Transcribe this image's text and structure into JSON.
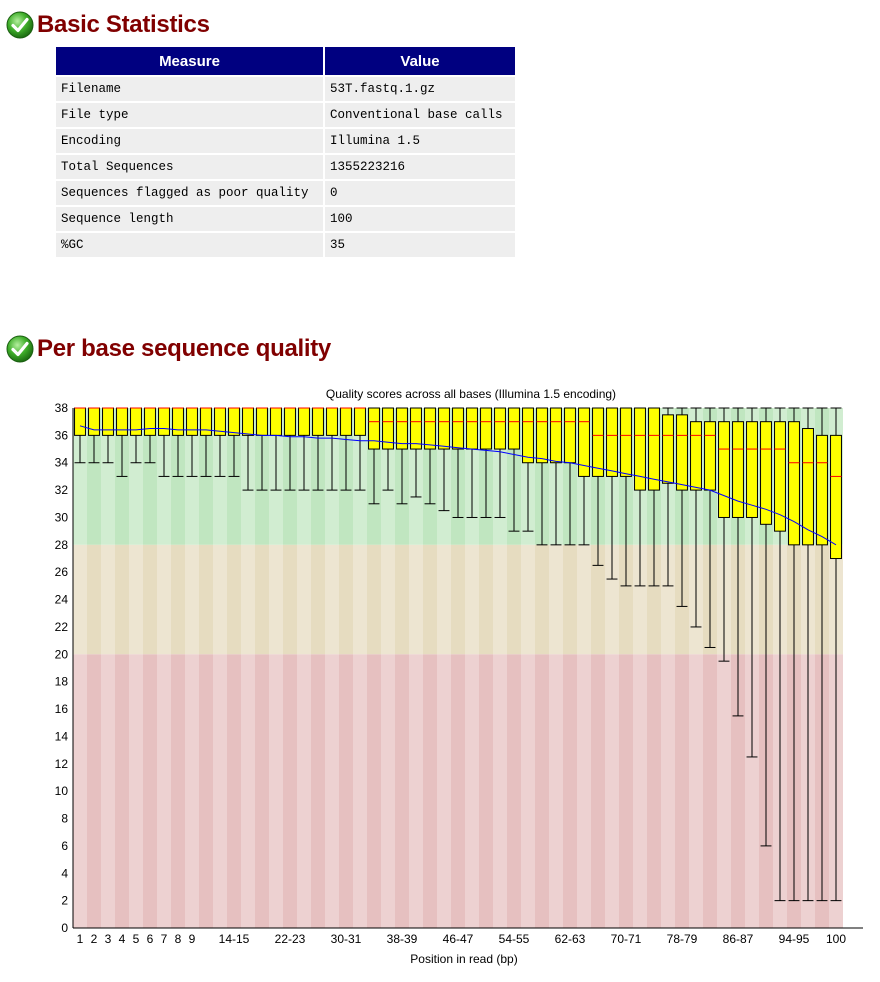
{
  "sections": {
    "basic_statistics": {
      "title": "Basic Statistics",
      "status_icon": "check-icon"
    },
    "per_base_quality": {
      "title": "Per base sequence quality",
      "status_icon": "check-icon"
    }
  },
  "table": {
    "headers": [
      "Measure",
      "Value"
    ],
    "rows": [
      [
        "Filename",
        "53T.fastq.1.gz"
      ],
      [
        "File type",
        "Conventional base calls"
      ],
      [
        "Encoding",
        "Illumina 1.5"
      ],
      [
        "Total Sequences",
        "1355223216"
      ],
      [
        "Sequences flagged as poor quality",
        "0"
      ],
      [
        "Sequence length",
        "100"
      ],
      [
        "%GC",
        "35"
      ]
    ]
  },
  "colors": {
    "title": "#800000",
    "table_header": "#000080",
    "box_fill": "#ffff00",
    "mean_line": "#0000ff",
    "median_line": "#ff0000",
    "zone_good": "#c0e6c0",
    "zone_ok": "#e6dcc0",
    "zone_poor": "#e6c0c0"
  },
  "chart_data": {
    "type": "boxplot",
    "title": "Quality scores across all bases (Illumina 1.5 encoding)",
    "xlabel": "Position in read (bp)",
    "ylabel": "",
    "ylim": [
      0,
      38
    ],
    "yticks": [
      0,
      2,
      4,
      6,
      8,
      10,
      12,
      14,
      16,
      18,
      20,
      22,
      24,
      26,
      28,
      30,
      32,
      34,
      36,
      38
    ],
    "zones": [
      {
        "name": "good",
        "from": 28,
        "to": 38
      },
      {
        "name": "ok",
        "from": 20,
        "to": 28
      },
      {
        "name": "poor",
        "from": 0,
        "to": 20
      }
    ],
    "categories": [
      "1",
      "2",
      "3",
      "4",
      "5",
      "6",
      "7",
      "8",
      "9",
      "10-11",
      "12-13",
      "14-15",
      "16-17",
      "18-19",
      "20-21",
      "22-23",
      "24-25",
      "26-27",
      "28-29",
      "30-31",
      "32-33",
      "34-35",
      "36-37",
      "38-39",
      "40-41",
      "42-43",
      "44-45",
      "46-47",
      "48-49",
      "50-51",
      "52-53",
      "54-55",
      "56-57",
      "58-59",
      "60-61",
      "62-63",
      "64-65",
      "66-67",
      "68-69",
      "70-71",
      "72-73",
      "74-75",
      "76-77",
      "78-79",
      "80-81",
      "82-83",
      "84-85",
      "86-87",
      "88-89",
      "90-91",
      "92-93",
      "94-95",
      "96-97",
      "98-99",
      "100"
    ],
    "tick_labels": [
      "1",
      "2",
      "3",
      "4",
      "5",
      "6",
      "7",
      "8",
      "9",
      "14-15",
      "22-23",
      "30-31",
      "38-39",
      "46-47",
      "54-55",
      "62-63",
      "70-71",
      "78-79",
      "86-87",
      "94-95",
      "100"
    ],
    "q1": [
      36,
      36,
      36,
      36,
      36,
      36,
      36,
      36,
      36,
      36,
      36,
      36,
      36,
      36,
      36,
      36,
      36,
      36,
      36,
      36,
      36,
      35,
      35,
      35,
      35,
      35,
      35,
      35,
      35,
      35,
      35,
      35,
      34,
      34,
      34,
      34,
      33,
      33,
      33,
      33,
      32,
      32,
      32.5,
      32,
      32,
      32,
      30,
      30,
      30,
      29.5,
      29,
      28,
      28,
      28,
      27
    ],
    "median": [
      38,
      38,
      38,
      38,
      38,
      38,
      38,
      38,
      38,
      38,
      38,
      38,
      38,
      38,
      38,
      38,
      38,
      38,
      38,
      38,
      38,
      37,
      37,
      37,
      37,
      37,
      37,
      37,
      37,
      37,
      37,
      37,
      37,
      37,
      37,
      37,
      37,
      36,
      36,
      36,
      36,
      36,
      36,
      36,
      36,
      36,
      35,
      35,
      35,
      35,
      35,
      34,
      34,
      34,
      33
    ],
    "q3": [
      38,
      38,
      38,
      38,
      38,
      38,
      38,
      38,
      38,
      38,
      38,
      38,
      38,
      38,
      38,
      38,
      38,
      38,
      38,
      38,
      38,
      38,
      38,
      38,
      38,
      38,
      38,
      38,
      38,
      38,
      38,
      38,
      38,
      38,
      38,
      38,
      38,
      38,
      38,
      38,
      38,
      38,
      37.5,
      37.5,
      37,
      37,
      37,
      37,
      37,
      37,
      37,
      37,
      36.5,
      36,
      36
    ],
    "lower": [
      34,
      34,
      34,
      33,
      34,
      34,
      33,
      33,
      33,
      33,
      33,
      33,
      32,
      32,
      32,
      32,
      32,
      32,
      32,
      32,
      32,
      31,
      32,
      31,
      31.5,
      31,
      30.5,
      30,
      30,
      30,
      30,
      29,
      29,
      28,
      28,
      28,
      28,
      26.5,
      25.5,
      25,
      25,
      25,
      25,
      23.5,
      22,
      20.5,
      19.5,
      15.5,
      12.5,
      6,
      2,
      2,
      2,
      2,
      2
    ],
    "upper": [
      38,
      38,
      38,
      38,
      38,
      38,
      38,
      38,
      38,
      38,
      38,
      38,
      38,
      38,
      38,
      38,
      38,
      38,
      38,
      38,
      38,
      38,
      38,
      38,
      38,
      38,
      38,
      38,
      38,
      38,
      38,
      38,
      38,
      38,
      38,
      38,
      38,
      38,
      38,
      38,
      38,
      38,
      38,
      38,
      38,
      38,
      38,
      38,
      38,
      38,
      38,
      38,
      38,
      38,
      38
    ],
    "mean": [
      36.7,
      36.4,
      36.4,
      36.4,
      36.4,
      36.5,
      36.5,
      36.4,
      36.4,
      36.4,
      36.3,
      36.2,
      36.1,
      36.0,
      36.0,
      35.9,
      35.9,
      35.8,
      35.8,
      35.7,
      35.6,
      35.6,
      35.5,
      35.4,
      35.4,
      35.3,
      35.2,
      35.1,
      35.0,
      34.9,
      34.8,
      34.6,
      34.4,
      34.3,
      34.1,
      34.0,
      33.8,
      33.6,
      33.4,
      33.2,
      33.0,
      32.8,
      32.6,
      32.4,
      32.2,
      32.0,
      31.6,
      31.2,
      30.9,
      30.6,
      30.2,
      29.7,
      29.1,
      28.6,
      28.0
    ]
  }
}
